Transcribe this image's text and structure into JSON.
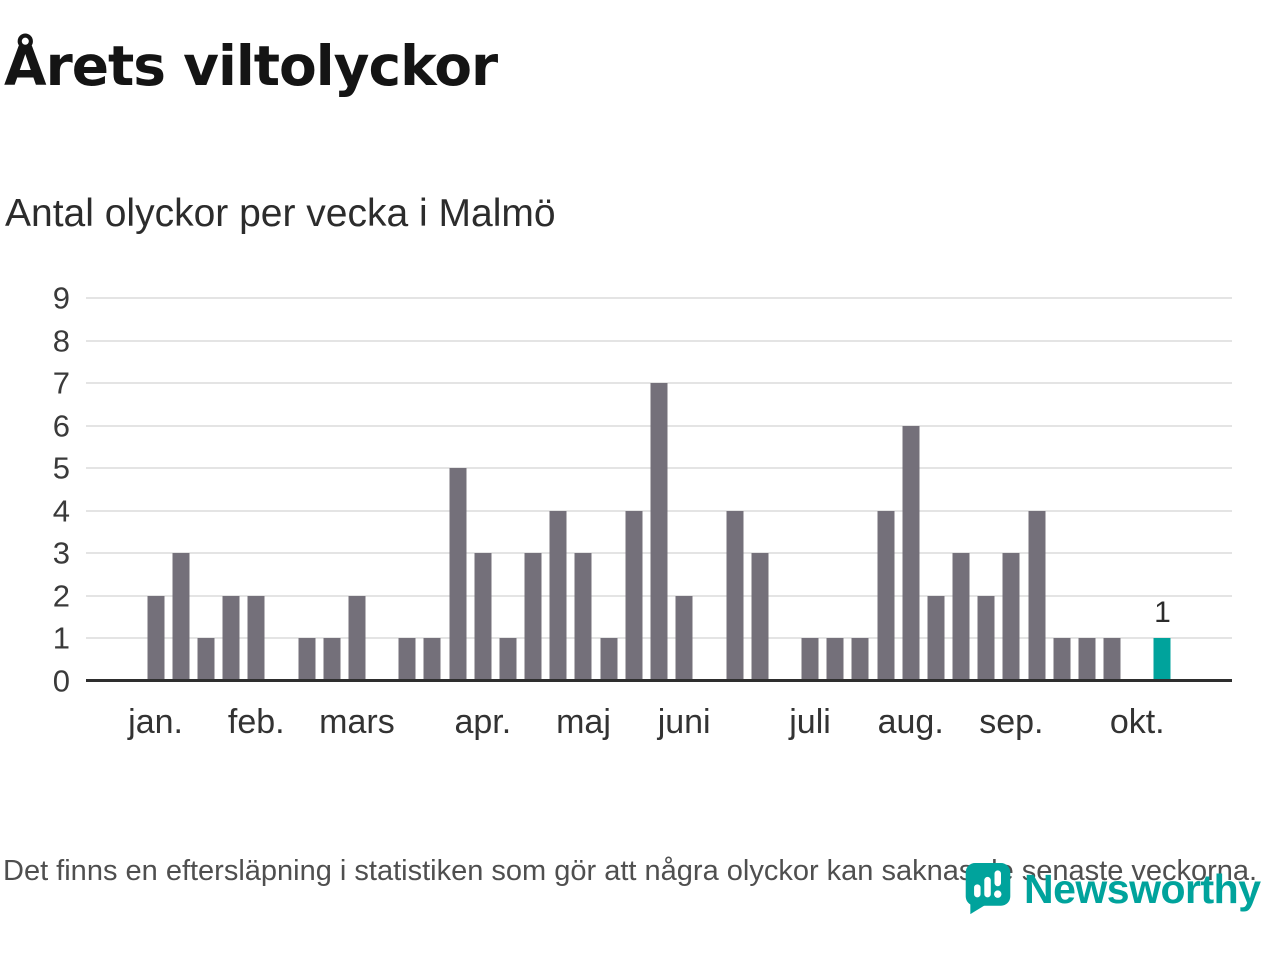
{
  "title": "Årets viltolyckor",
  "subtitle": "Antal olyckor per vecka i Malmö",
  "footer": "Det finns en eftersläpning i statistiken som gör att några olyckor kan saknas de senaste veckorna.",
  "brand": {
    "name": "Newsworthy",
    "color": "#00a39c"
  },
  "chart_data": {
    "type": "bar",
    "title": "Årets viltolyckor",
    "subtitle": "Antal olyckor per vecka i Malmö",
    "values": [
      2,
      3,
      1,
      2,
      2,
      0,
      1,
      1,
      2,
      0,
      1,
      1,
      5,
      3,
      1,
      3,
      4,
      3,
      1,
      4,
      7,
      2,
      0,
      4,
      3,
      0,
      1,
      1,
      1,
      4,
      6,
      2,
      3,
      2,
      3,
      4,
      1,
      1,
      1,
      0,
      1
    ],
    "highlight_index": 40,
    "highlight_label": "1",
    "yticks": [
      0,
      1,
      2,
      3,
      4,
      5,
      6,
      7,
      8,
      9
    ],
    "ylim": [
      0,
      9
    ],
    "bar_color": "#74707a",
    "highlight_color": "#00a39c",
    "grid": "horizontal",
    "legend": "none",
    "months": [
      {
        "label": "jan.",
        "week": 1
      },
      {
        "label": "feb.",
        "week": 5
      },
      {
        "label": "mars",
        "week": 9
      },
      {
        "label": "apr.",
        "week": 14
      },
      {
        "label": "maj",
        "week": 18
      },
      {
        "label": "juni",
        "week": 22
      },
      {
        "label": "juli",
        "week": 27
      },
      {
        "label": "aug.",
        "week": 31
      },
      {
        "label": "sep.",
        "week": 35
      },
      {
        "label": "okt.",
        "week": 40
      }
    ]
  }
}
